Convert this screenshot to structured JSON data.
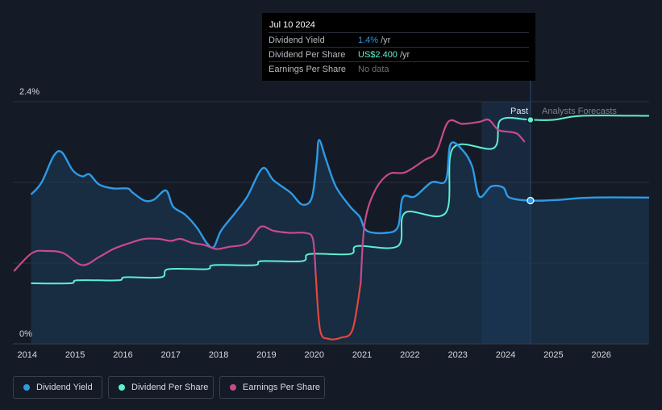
{
  "tooltip": {
    "date": "Jul 10 2024",
    "rows": [
      {
        "label": "Dividend Yield",
        "value": "1.4%",
        "unit": "/yr",
        "color": "#2e9ae6"
      },
      {
        "label": "Dividend Per Share",
        "value": "US$2.400",
        "unit": "/yr",
        "color": "#5ef0d0"
      },
      {
        "label": "Earnings Per Share",
        "value": "No data",
        "unit": "",
        "color": "#6b7078"
      }
    ]
  },
  "regions": {
    "past": "Past",
    "forecast": "Analysts Forecasts"
  },
  "legend": [
    {
      "label": "Dividend Yield",
      "color": "#2e9ae6"
    },
    {
      "label": "Dividend Per Share",
      "color": "#5ef0d0"
    },
    {
      "label": "Earnings Per Share",
      "color": "#c74b8b"
    }
  ],
  "chart_data": {
    "type": "line",
    "ylabels": [
      "2.4%",
      "0%"
    ],
    "xticks": [
      "2014",
      "2015",
      "2016",
      "2017",
      "2018",
      "2019",
      "2020",
      "2021",
      "2022",
      "2023",
      "2024",
      "2025",
      "2026"
    ],
    "xlim": [
      2013.7,
      2027.0
    ],
    "ylim": [
      0,
      2.4
    ],
    "past_forecast_split": 2024.52,
    "series": [
      {
        "name": "Dividend Yield",
        "color": "#2e9ae6",
        "points": [
          [
            2014.08,
            1.48
          ],
          [
            2014.3,
            1.6
          ],
          [
            2014.55,
            1.86
          ],
          [
            2014.72,
            1.9
          ],
          [
            2014.95,
            1.72
          ],
          [
            2015.15,
            1.66
          ],
          [
            2015.3,
            1.68
          ],
          [
            2015.5,
            1.58
          ],
          [
            2015.8,
            1.54
          ],
          [
            2016.1,
            1.54
          ],
          [
            2016.2,
            1.5
          ],
          [
            2016.45,
            1.42
          ],
          [
            2016.65,
            1.43
          ],
          [
            2016.9,
            1.52
          ],
          [
            2017.05,
            1.36
          ],
          [
            2017.3,
            1.28
          ],
          [
            2017.55,
            1.15
          ],
          [
            2017.75,
            1.0
          ],
          [
            2017.9,
            0.96
          ],
          [
            2018.05,
            1.12
          ],
          [
            2018.35,
            1.3
          ],
          [
            2018.6,
            1.46
          ],
          [
            2018.92,
            1.74
          ],
          [
            2019.15,
            1.62
          ],
          [
            2019.5,
            1.5
          ],
          [
            2019.75,
            1.38
          ],
          [
            2019.95,
            1.45
          ],
          [
            2020.05,
            1.8
          ],
          [
            2020.1,
            2.02
          ],
          [
            2020.25,
            1.82
          ],
          [
            2020.45,
            1.56
          ],
          [
            2020.75,
            1.36
          ],
          [
            2020.95,
            1.26
          ],
          [
            2021.1,
            1.12
          ],
          [
            2021.5,
            1.1
          ],
          [
            2021.75,
            1.16
          ],
          [
            2021.85,
            1.45
          ],
          [
            2022.1,
            1.46
          ],
          [
            2022.45,
            1.6
          ],
          [
            2022.75,
            1.62
          ],
          [
            2022.85,
            1.98
          ],
          [
            2023.1,
            1.92
          ],
          [
            2023.3,
            1.76
          ],
          [
            2023.45,
            1.46
          ],
          [
            2023.7,
            1.56
          ],
          [
            2023.95,
            1.55
          ],
          [
            2024.05,
            1.46
          ],
          [
            2024.25,
            1.43
          ],
          [
            2024.52,
            1.42
          ],
          [
            2024.8,
            1.42
          ],
          [
            2025.2,
            1.43
          ],
          [
            2025.8,
            1.45
          ],
          [
            2027.0,
            1.45
          ]
        ]
      },
      {
        "name": "Dividend Per Share",
        "color": "#5ef0d0",
        "points": [
          [
            2014.08,
            0.6
          ],
          [
            2014.9,
            0.6
          ],
          [
            2015.05,
            0.63
          ],
          [
            2015.9,
            0.63
          ],
          [
            2016.05,
            0.66
          ],
          [
            2016.8,
            0.66
          ],
          [
            2016.95,
            0.74
          ],
          [
            2017.75,
            0.74
          ],
          [
            2017.9,
            0.78
          ],
          [
            2018.75,
            0.78
          ],
          [
            2018.9,
            0.82
          ],
          [
            2019.75,
            0.82
          ],
          [
            2019.9,
            0.89
          ],
          [
            2020.75,
            0.89
          ],
          [
            2020.9,
            0.97
          ],
          [
            2021.75,
            0.97
          ],
          [
            2021.9,
            1.3
          ],
          [
            2022.75,
            1.3
          ],
          [
            2022.9,
            1.94
          ],
          [
            2023.75,
            1.94
          ],
          [
            2023.9,
            2.22
          ],
          [
            2024.52,
            2.22
          ],
          [
            2025.0,
            2.22
          ],
          [
            2025.6,
            2.26
          ],
          [
            2027.0,
            2.26
          ]
        ]
      },
      {
        "name": "Earnings Per Share",
        "color": "#c74b8b",
        "points": [
          [
            2013.72,
            0.72
          ],
          [
            2014.1,
            0.9
          ],
          [
            2014.4,
            0.92
          ],
          [
            2014.75,
            0.9
          ],
          [
            2015.15,
            0.78
          ],
          [
            2015.5,
            0.86
          ],
          [
            2015.8,
            0.94
          ],
          [
            2016.15,
            1.0
          ],
          [
            2016.45,
            1.04
          ],
          [
            2016.75,
            1.04
          ],
          [
            2017.0,
            1.02
          ],
          [
            2017.2,
            1.04
          ],
          [
            2017.45,
            1.0
          ],
          [
            2017.7,
            0.98
          ],
          [
            2017.95,
            0.94
          ],
          [
            2018.2,
            0.96
          ],
          [
            2018.6,
            1.0
          ],
          [
            2018.88,
            1.16
          ],
          [
            2019.15,
            1.12
          ],
          [
            2019.5,
            1.1
          ],
          [
            2019.8,
            1.1
          ],
          [
            2019.97,
            1.04
          ],
          [
            2020.03,
            0.7
          ],
          [
            2020.12,
            0.14
          ],
          [
            2020.3,
            0.05
          ],
          [
            2020.55,
            0.06
          ],
          [
            2020.8,
            0.14
          ],
          [
            2020.97,
            0.6
          ],
          [
            2021.05,
            1.18
          ],
          [
            2021.25,
            1.5
          ],
          [
            2021.55,
            1.68
          ],
          [
            2021.9,
            1.7
          ],
          [
            2022.3,
            1.82
          ],
          [
            2022.55,
            1.9
          ],
          [
            2022.8,
            2.2
          ],
          [
            2023.1,
            2.18
          ],
          [
            2023.45,
            2.2
          ],
          [
            2023.65,
            2.22
          ],
          [
            2023.85,
            2.12
          ],
          [
            2024.1,
            2.1
          ],
          [
            2024.25,
            2.08
          ],
          [
            2024.4,
            2.0
          ]
        ]
      }
    ]
  }
}
